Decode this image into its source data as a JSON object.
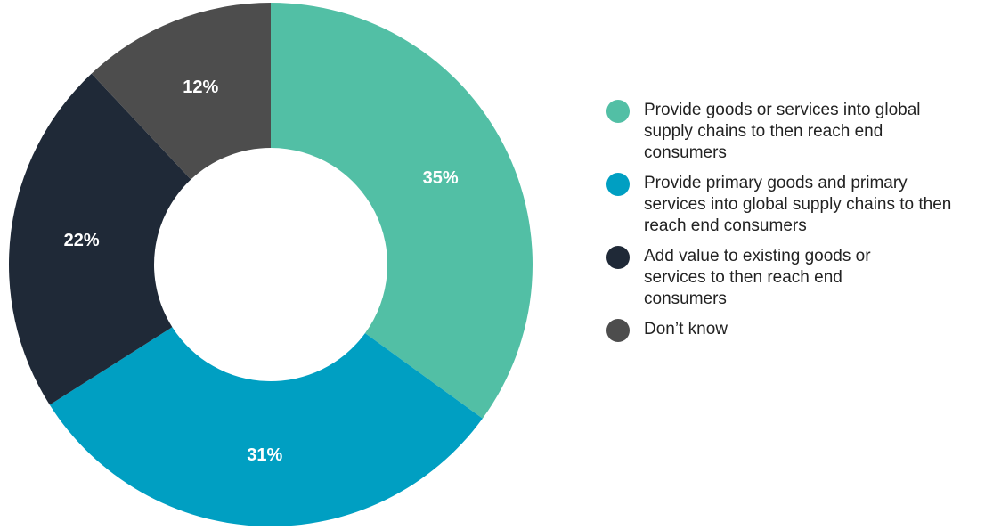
{
  "chart_data": {
    "type": "pie",
    "donut": true,
    "categories": [
      "Provide goods or services into global supply chains to then reach end consumers",
      "Provide primary goods and primary services into global supply chains to then reach end consumers",
      "Add value to existing goods or services to then reach end consumers",
      "Don’t know"
    ],
    "values": [
      35,
      31,
      22,
      12
    ],
    "labels": [
      "35%",
      "31%",
      "22%",
      "12%"
    ],
    "colors": [
      "#52bfa5",
      "#009fc2",
      "#1f2937",
      "#4d4d4d"
    ],
    "legend_position": "right"
  }
}
